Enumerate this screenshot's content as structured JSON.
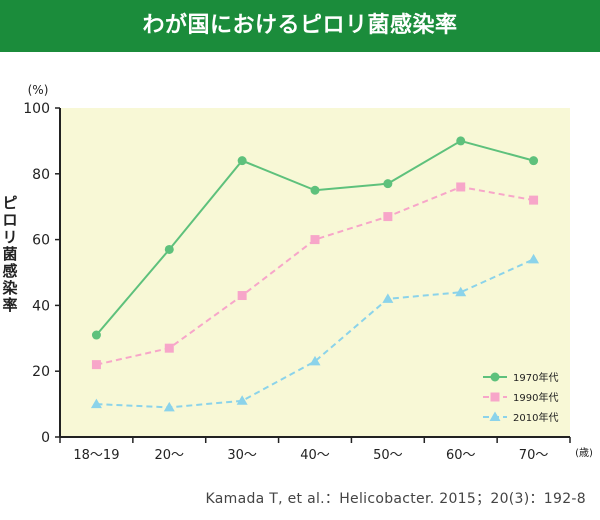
{
  "header": {
    "title": "わが国におけるピロリ菌感染率"
  },
  "citation": "Kamada T, et al.：Helicobacter. 2015；20(3)：192-8",
  "colors": {
    "header_bg": "#1b8c3b",
    "plot_bg": "#f8f8d6",
    "series_1970": "#5ec17c",
    "series_1990": "#f7a6c9",
    "series_2010": "#8bd3ea"
  },
  "chart_data": {
    "type": "line",
    "ylabel": "ピロリ菌感染率",
    "y_unit": "(%)",
    "x_unit": "(歳)",
    "ylim": [
      0,
      100
    ],
    "yticks": [
      0,
      20,
      40,
      60,
      80,
      100
    ],
    "categories": [
      "18〜19",
      "20〜",
      "30〜",
      "40〜",
      "50〜",
      "60〜",
      "70〜"
    ],
    "grid": false,
    "legend_position": "bottom-right",
    "series": [
      {
        "name": "1970年代",
        "color": "#5ec17c",
        "marker": "circle",
        "line_style": "solid",
        "values": [
          31,
          57,
          84,
          75,
          77,
          90,
          84
        ]
      },
      {
        "name": "1990年代",
        "color": "#f7a6c9",
        "marker": "square",
        "line_style": "dashed",
        "values": [
          22,
          27,
          43,
          60,
          67,
          76,
          72
        ]
      },
      {
        "name": "2010年代",
        "color": "#8bd3ea",
        "marker": "triangle",
        "line_style": "dashed",
        "values": [
          10,
          9,
          11,
          23,
          42,
          44,
          54
        ]
      }
    ]
  }
}
